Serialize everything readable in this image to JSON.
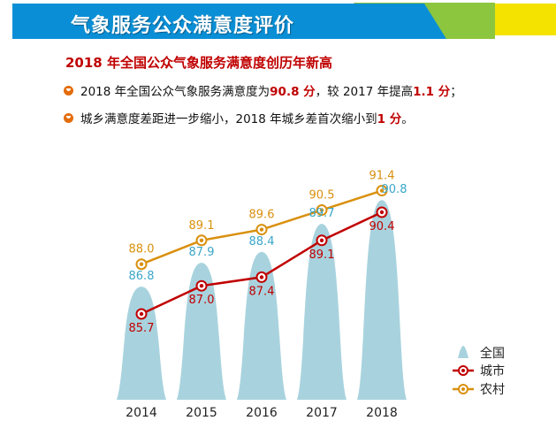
{
  "banner": {
    "title": "气象服务公众满意度评价"
  },
  "headline": "2018 年全国公众气象服务满意度创历年新高",
  "bullets": [
    {
      "parts": [
        {
          "text": "2018 年全国公众气象服务满意度为 ",
          "highlight": false
        },
        {
          "text": "90.8 分",
          "highlight": true
        },
        {
          "text": "，较 2017 年提高 ",
          "highlight": false
        },
        {
          "text": "1.1 分",
          "highlight": true
        },
        {
          "text": "；",
          "highlight": false
        }
      ]
    },
    {
      "parts": [
        {
          "text": "城乡满意度差距进一步缩小，2018 年城乡差首次缩小到 ",
          "highlight": false
        },
        {
          "text": "1 分",
          "highlight": true
        },
        {
          "text": "。",
          "highlight": false
        }
      ]
    }
  ],
  "colors": {
    "banner_blue": "#0a8fd6",
    "banner_green": "#8cc63f",
    "banner_yellow": "#f4e300",
    "headline_red": "#c00000",
    "bullet_orange": "#e46c0a",
    "national_fill": "#a8d3de",
    "national_label": "#3aa6c8",
    "urban": "#c00000",
    "rural": "#d9900e"
  },
  "chart_data": {
    "type": "line",
    "categories": [
      "2014",
      "2015",
      "2016",
      "2017",
      "2018"
    ],
    "ylim": [
      84.0,
      92.0
    ],
    "series": [
      {
        "name": "全国",
        "kind": "area-peaks",
        "values": [
          86.8,
          87.9,
          88.4,
          89.7,
          90.8
        ],
        "labels": [
          "86.8",
          "87.9",
          "88.4",
          "89.7",
          "90.8"
        ]
      },
      {
        "name": "城市",
        "kind": "line",
        "values": [
          85.7,
          87.0,
          87.4,
          89.1,
          90.4
        ],
        "labels": [
          "85.7",
          "87.0",
          "87.4",
          "89.1",
          "90.4"
        ]
      },
      {
        "name": "农村",
        "kind": "line",
        "values": [
          88.0,
          89.1,
          89.6,
          90.5,
          91.4
        ],
        "labels": [
          "88.0",
          "89.1",
          "89.6",
          "90.5",
          "91.4"
        ]
      }
    ],
    "legend": {
      "position": "bottom-right",
      "items": [
        "全国",
        "城市",
        "农村"
      ]
    },
    "grid": false
  }
}
